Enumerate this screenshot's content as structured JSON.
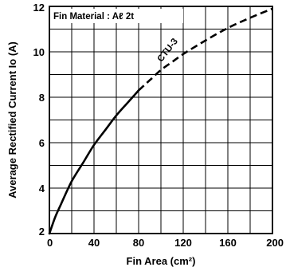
{
  "chart_data": {
    "type": "line",
    "title": "",
    "xlabel": "Fin Area (cm²)",
    "ylabel": "Average Rectified Current Io (A)",
    "xlim": [
      0,
      200
    ],
    "ylim": [
      2,
      12
    ],
    "x_ticks": [
      0,
      40,
      80,
      120,
      160,
      200
    ],
    "y_ticks": [
      2,
      4,
      6,
      8,
      10,
      12
    ],
    "x_tick_labels": [
      "0",
      "40",
      "80",
      "120",
      "160",
      "200"
    ],
    "y_tick_labels": [
      "2",
      "4",
      "6",
      "8",
      "10",
      "12"
    ],
    "grid": true,
    "annotation": "Fin Material : Aℓ 2t",
    "series": [
      {
        "name": "",
        "style": "solid",
        "x": [
          0,
          5,
          10,
          20,
          30,
          40,
          50,
          60,
          70,
          80
        ],
        "y": [
          2.0,
          2.7,
          3.25,
          4.3,
          5.1,
          5.9,
          6.55,
          7.2,
          7.75,
          8.3
        ]
      },
      {
        "name": "CTU-3",
        "style": "dashed",
        "x": [
          80,
          90,
          100,
          110,
          120,
          140,
          160,
          180,
          200
        ],
        "y": [
          8.3,
          8.75,
          9.2,
          9.55,
          9.9,
          10.5,
          11.05,
          11.5,
          11.9
        ]
      }
    ],
    "series_label": "CTU-3"
  }
}
